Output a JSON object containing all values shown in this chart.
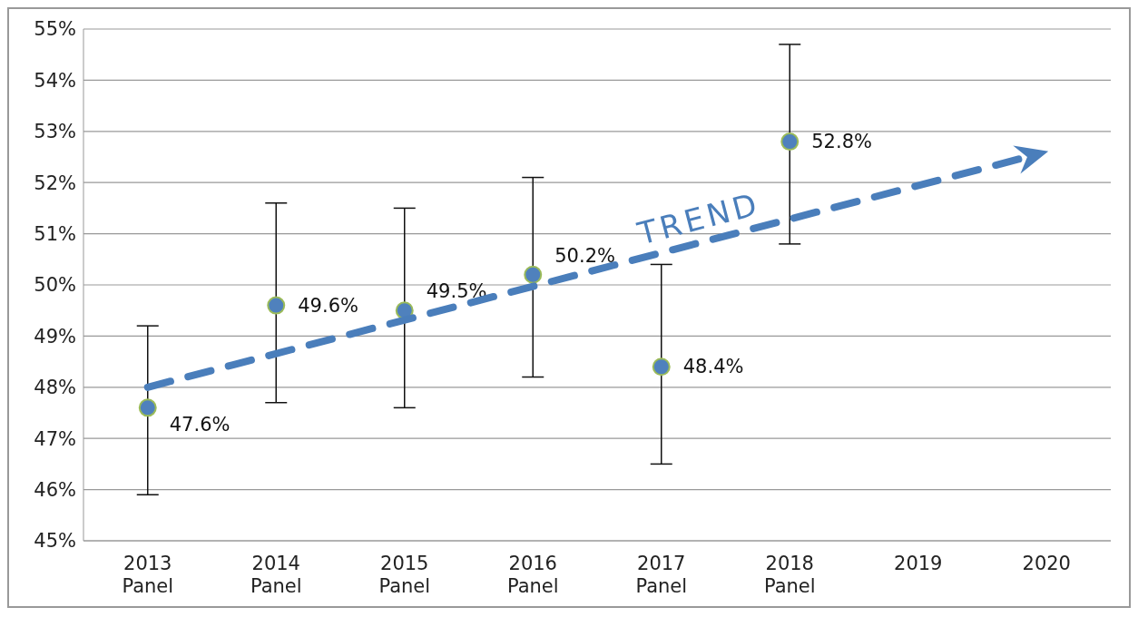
{
  "chart_data": {
    "type": "scatter",
    "categories": [
      "2013\nPanel",
      "2014\nPanel",
      "2015\nPanel",
      "2016\nPanel",
      "2017\nPanel",
      "2018\nPanel",
      "2019",
      "2020"
    ],
    "series": [
      {
        "color": "#4f81bd",
        "values": [
          47.6,
          49.6,
          49.5,
          50.2,
          48.4,
          52.8,
          null,
          null
        ],
        "errors": [
          [
            45.9,
            49.2
          ],
          [
            47.7,
            51.6
          ],
          [
            47.6,
            51.5
          ],
          [
            48.2,
            52.1
          ],
          [
            46.5,
            50.4
          ],
          [
            50.8,
            54.7
          ],
          null,
          null
        ],
        "value_labels": [
          "47.6%",
          "49.6%",
          "49.5%",
          "50.2%",
          "48.4%",
          "52.8%",
          null,
          null
        ],
        "marker": "circle"
      }
    ],
    "annotations": [
      "TREND"
    ],
    "ylim": [
      45,
      55
    ],
    "yticks": [
      {
        "value": 45,
        "label": "45%"
      },
      {
        "value": 46,
        "label": "46%"
      },
      {
        "value": 47,
        "label": "47%"
      },
      {
        "value": 48,
        "label": "48%"
      },
      {
        "value": 49,
        "label": "49%"
      },
      {
        "value": 50,
        "label": "50%"
      },
      {
        "value": 51,
        "label": "51%"
      },
      {
        "value": 52,
        "label": "52%"
      },
      {
        "value": 53,
        "label": "53%"
      },
      {
        "value": 54,
        "label": "54%"
      },
      {
        "value": 55,
        "label": "55%"
      }
    ],
    "grid": "y"
  }
}
